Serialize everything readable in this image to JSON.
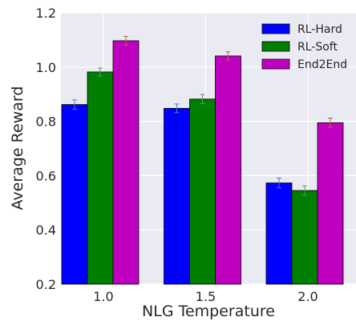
{
  "chart_data": {
    "type": "bar",
    "title": "",
    "xlabel": "NLG Temperature",
    "ylabel": "Average Reward",
    "categories": [
      "1.0",
      "1.5",
      "2.0"
    ],
    "ylim": [
      0.2,
      1.2
    ],
    "yticks": [
      "0.2",
      "0.4",
      "0.6",
      "0.8",
      "1.0",
      "1.2"
    ],
    "grid": true,
    "legend_position": "top-right",
    "series": [
      {
        "name": "RL-Hard",
        "color": "#0000ff",
        "error_color": "#4a7ec0",
        "values": [
          0.862,
          0.848,
          0.573
        ],
        "errors": [
          0.017,
          0.016,
          0.018
        ]
      },
      {
        "name": "RL-Soft",
        "color": "#007f00",
        "error_color": "#5a9e5a",
        "values": [
          0.982,
          0.882,
          0.545
        ],
        "errors": [
          0.015,
          0.017,
          0.017
        ]
      },
      {
        "name": "End2End",
        "color": "#bf00bf",
        "error_color": "#c0604a",
        "values": [
          1.097,
          1.041,
          0.795
        ],
        "errors": [
          0.016,
          0.015,
          0.017
        ]
      }
    ],
    "colors": {
      "background": "#eaeaf2",
      "grid": "#ffffff",
      "text": "#262626"
    }
  }
}
